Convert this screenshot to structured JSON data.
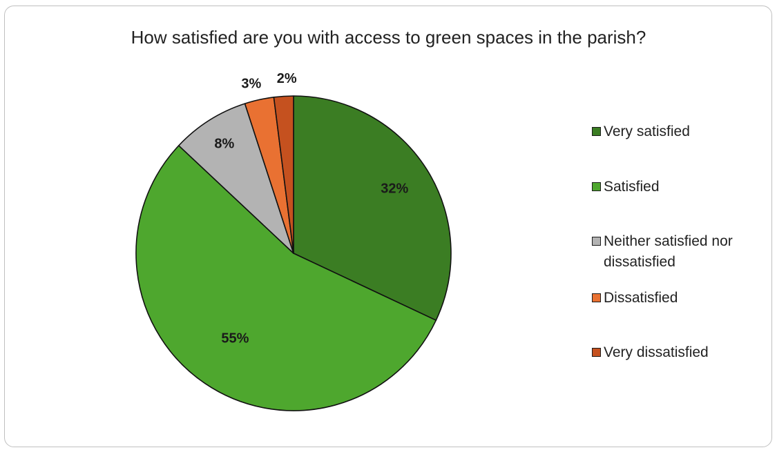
{
  "chart_data": {
    "type": "pie",
    "title": "How satisfied are you with access to green spaces in the parish?",
    "categories": [
      "Very satisfied",
      "Satisfied",
      "Neither satisfied nor dissatisfied",
      "Dissatisfied",
      "Very dissatisfied"
    ],
    "values": [
      32,
      55,
      8,
      3,
      2
    ],
    "data_labels": [
      "32%",
      "55%",
      "8%",
      "3%",
      "2%"
    ],
    "colors": [
      "#3b7d23",
      "#4ea72e",
      "#b3b3b3",
      "#e97132",
      "#c5511f"
    ],
    "legend_position": "right"
  }
}
